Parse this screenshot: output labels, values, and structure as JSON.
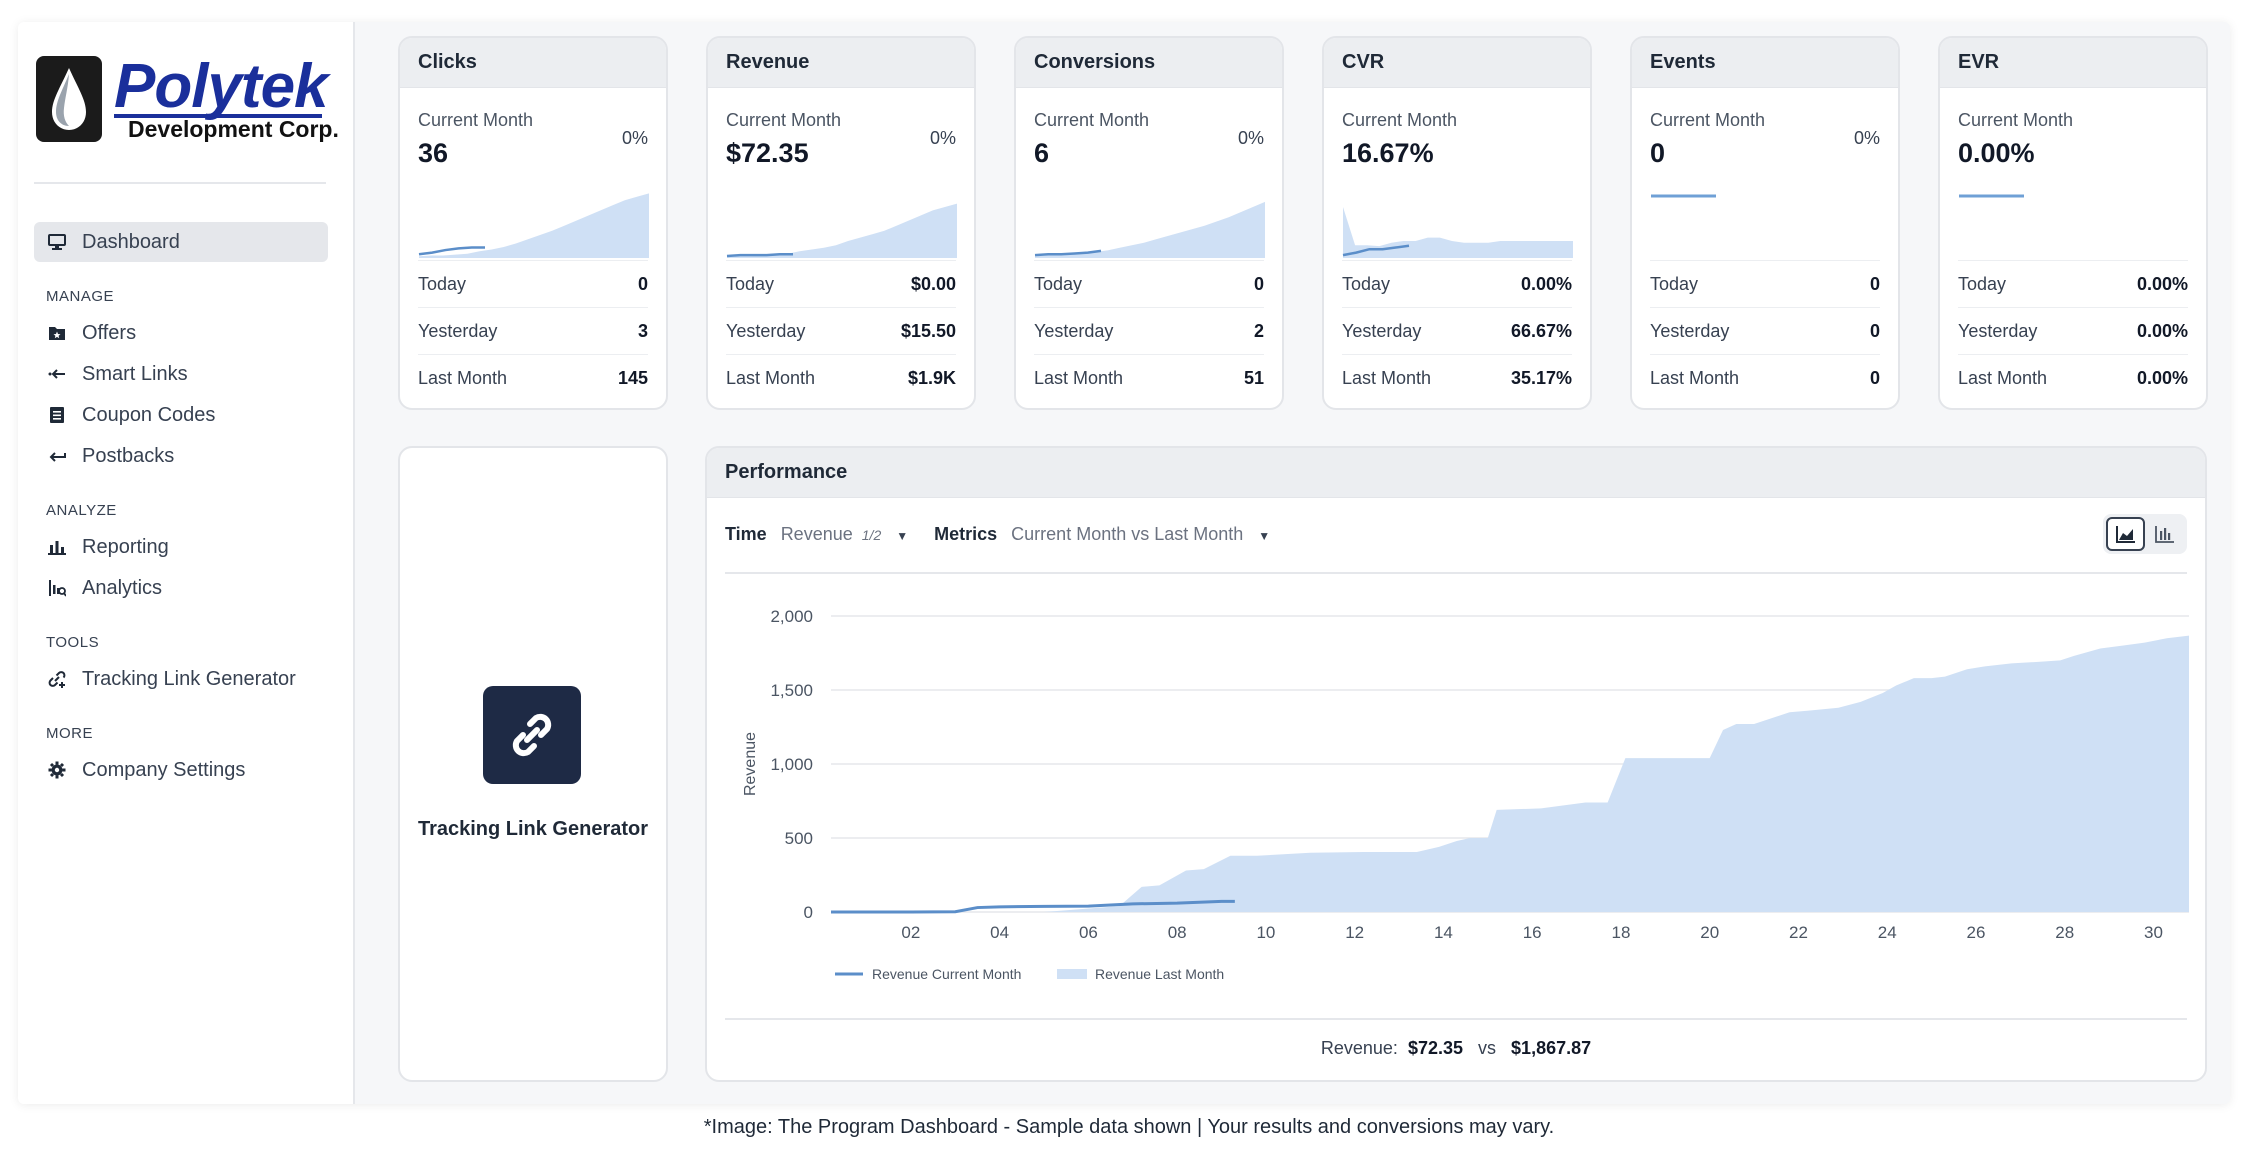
{
  "brand": {
    "name": "Polytek",
    "subtitle": "Development Corp."
  },
  "sidebar": {
    "dashboard": "Dashboard",
    "sections": [
      {
        "title": "MANAGE",
        "items": [
          "Offers",
          "Smart Links",
          "Coupon Codes",
          "Postbacks"
        ]
      },
      {
        "title": "ANALYZE",
        "items": [
          "Reporting",
          "Analytics"
        ]
      },
      {
        "title": "TOOLS",
        "items": [
          "Tracking Link Generator"
        ]
      },
      {
        "title": "MORE",
        "items": [
          "Company Settings"
        ]
      }
    ]
  },
  "cards": [
    {
      "title": "Clicks",
      "label": "Current Month",
      "value": "36",
      "pct": "0%",
      "rows": [
        {
          "k": "Today",
          "v": "0"
        },
        {
          "k": "Yesterday",
          "v": "3"
        },
        {
          "k": "Last Month",
          "v": "145"
        }
      ]
    },
    {
      "title": "Revenue",
      "label": "Current Month",
      "value": "$72.35",
      "pct": "0%",
      "rows": [
        {
          "k": "Today",
          "v": "$0.00"
        },
        {
          "k": "Yesterday",
          "v": "$15.50"
        },
        {
          "k": "Last Month",
          "v": "$1.9K"
        }
      ]
    },
    {
      "title": "Conversions",
      "label": "Current Month",
      "value": "6",
      "pct": "0%",
      "rows": [
        {
          "k": "Today",
          "v": "0"
        },
        {
          "k": "Yesterday",
          "v": "2"
        },
        {
          "k": "Last Month",
          "v": "51"
        }
      ]
    },
    {
      "title": "CVR",
      "label": "Current Month",
      "value": "16.67%",
      "pct": "",
      "rows": [
        {
          "k": "Today",
          "v": "0.00%"
        },
        {
          "k": "Yesterday",
          "v": "66.67%"
        },
        {
          "k": "Last Month",
          "v": "35.17%"
        }
      ]
    },
    {
      "title": "Events",
      "label": "Current Month",
      "value": "0",
      "pct": "0%",
      "rows": [
        {
          "k": "Today",
          "v": "0"
        },
        {
          "k": "Yesterday",
          "v": "0"
        },
        {
          "k": "Last Month",
          "v": "0"
        }
      ]
    },
    {
      "title": "EVR",
      "label": "Current Month",
      "value": "0.00%",
      "pct": "",
      "rows": [
        {
          "k": "Today",
          "v": "0.00%"
        },
        {
          "k": "Yesterday",
          "v": "0.00%"
        },
        {
          "k": "Last Month",
          "v": "0.00%"
        }
      ]
    }
  ],
  "tracking_card": {
    "label": "Tracking Link Generator"
  },
  "performance": {
    "title": "Performance",
    "time_label": "Time",
    "time_value": "Revenue",
    "time_page": "1/2",
    "metrics_label": "Metrics",
    "metrics_value": "Current Month vs Last Month",
    "summary_label": "Revenue:",
    "summary_current": "$72.35",
    "summary_vs": "vs",
    "summary_last": "$1,867.87"
  },
  "chart_data": {
    "type": "area",
    "ylabel": "Revenue",
    "xlabel": "",
    "ylim": [
      0,
      2000
    ],
    "yticks": [
      "0",
      "500",
      "1,000",
      "1,500",
      "2,000"
    ],
    "xtick_labels": [
      "02",
      "04",
      "06",
      "08",
      "10",
      "12",
      "14",
      "16",
      "18",
      "20",
      "22",
      "24",
      "26",
      "28",
      "30"
    ],
    "xlim": [
      0.2,
      30.8
    ],
    "grid": true,
    "legend_position": "bottom-left",
    "series": [
      {
        "name": "Revenue Current Month",
        "style": "line",
        "color": "#5b8ec9",
        "x": [
          0.2,
          1,
          2,
          3,
          3.5,
          4,
          5,
          6,
          7,
          8,
          9,
          9.3
        ],
        "y": [
          0,
          0,
          0,
          2,
          30,
          35,
          38,
          40,
          55,
          60,
          72,
          72
        ]
      },
      {
        "name": "Revenue Last Month",
        "style": "area",
        "color": "#cfe0f5",
        "x": [
          0.2,
          5,
          6.7,
          7.2,
          7.6,
          8.2,
          8.6,
          9.2,
          9.8,
          11,
          12.2,
          13.4,
          13.9,
          14.3,
          14.6,
          15.0,
          15.2,
          16.2,
          17.2,
          17.7,
          18.1,
          18.4,
          19.2,
          20.0,
          20.3,
          20.6,
          21.0,
          21.8,
          22.2,
          22.9,
          23.4,
          23.9,
          24.2,
          24.6,
          25.0,
          25.3,
          25.8,
          26.2,
          26.8,
          27.4,
          27.9,
          28.2,
          28.8,
          29.3,
          29.8,
          30.3,
          30.8
        ],
        "y": [
          0,
          0,
          40,
          170,
          180,
          280,
          290,
          380,
          380,
          400,
          405,
          405,
          440,
          480,
          500,
          500,
          690,
          700,
          740,
          740,
          1040,
          1040,
          1040,
          1040,
          1230,
          1270,
          1270,
          1350,
          1360,
          1380,
          1420,
          1480,
          1530,
          1580,
          1580,
          1590,
          1640,
          1660,
          1680,
          1690,
          1700,
          1730,
          1780,
          1800,
          1820,
          1850,
          1867
        ]
      }
    ]
  },
  "spark_data": [
    {
      "area": [
        2,
        3,
        3,
        4,
        5,
        8,
        10,
        13,
        17,
        22,
        27,
        32,
        38,
        44,
        50,
        56,
        62,
        68,
        72,
        76
      ],
      "line": [
        2,
        4,
        7,
        9,
        10,
        10
      ]
    },
    {
      "area": [
        1,
        2,
        2,
        3,
        3,
        5,
        8,
        10,
        12,
        15,
        20,
        24,
        28,
        32,
        38,
        44,
        50,
        56,
        60,
        64
      ],
      "line": [
        0,
        1,
        1,
        1,
        2,
        2
      ]
    },
    {
      "area": [
        2,
        3,
        3,
        4,
        5,
        7,
        9,
        12,
        15,
        18,
        22,
        26,
        30,
        34,
        38,
        43,
        48,
        54,
        60,
        66
      ],
      "line": [
        1,
        2,
        2,
        3,
        4,
        6
      ]
    },
    {
      "area": [
        60,
        15,
        15,
        14,
        18,
        20,
        20,
        24,
        24,
        20,
        18,
        18,
        18,
        20,
        20,
        20,
        20,
        20,
        20,
        20
      ],
      "line": [
        1,
        4,
        8,
        8,
        10,
        12
      ]
    },
    {
      "area": [],
      "line": [
        0,
        0,
        0,
        0,
        0,
        0
      ]
    },
    {
      "area": [],
      "line": [
        0,
        0,
        0,
        0,
        0,
        0
      ]
    }
  ],
  "colors": {
    "accent": "#1e2a45",
    "area": "#cfe0f5",
    "line": "#5b8ec9",
    "brand": "#1a2f9b"
  },
  "caption": "*Image: The Program Dashboard - Sample data shown | Your results and conversions may vary."
}
